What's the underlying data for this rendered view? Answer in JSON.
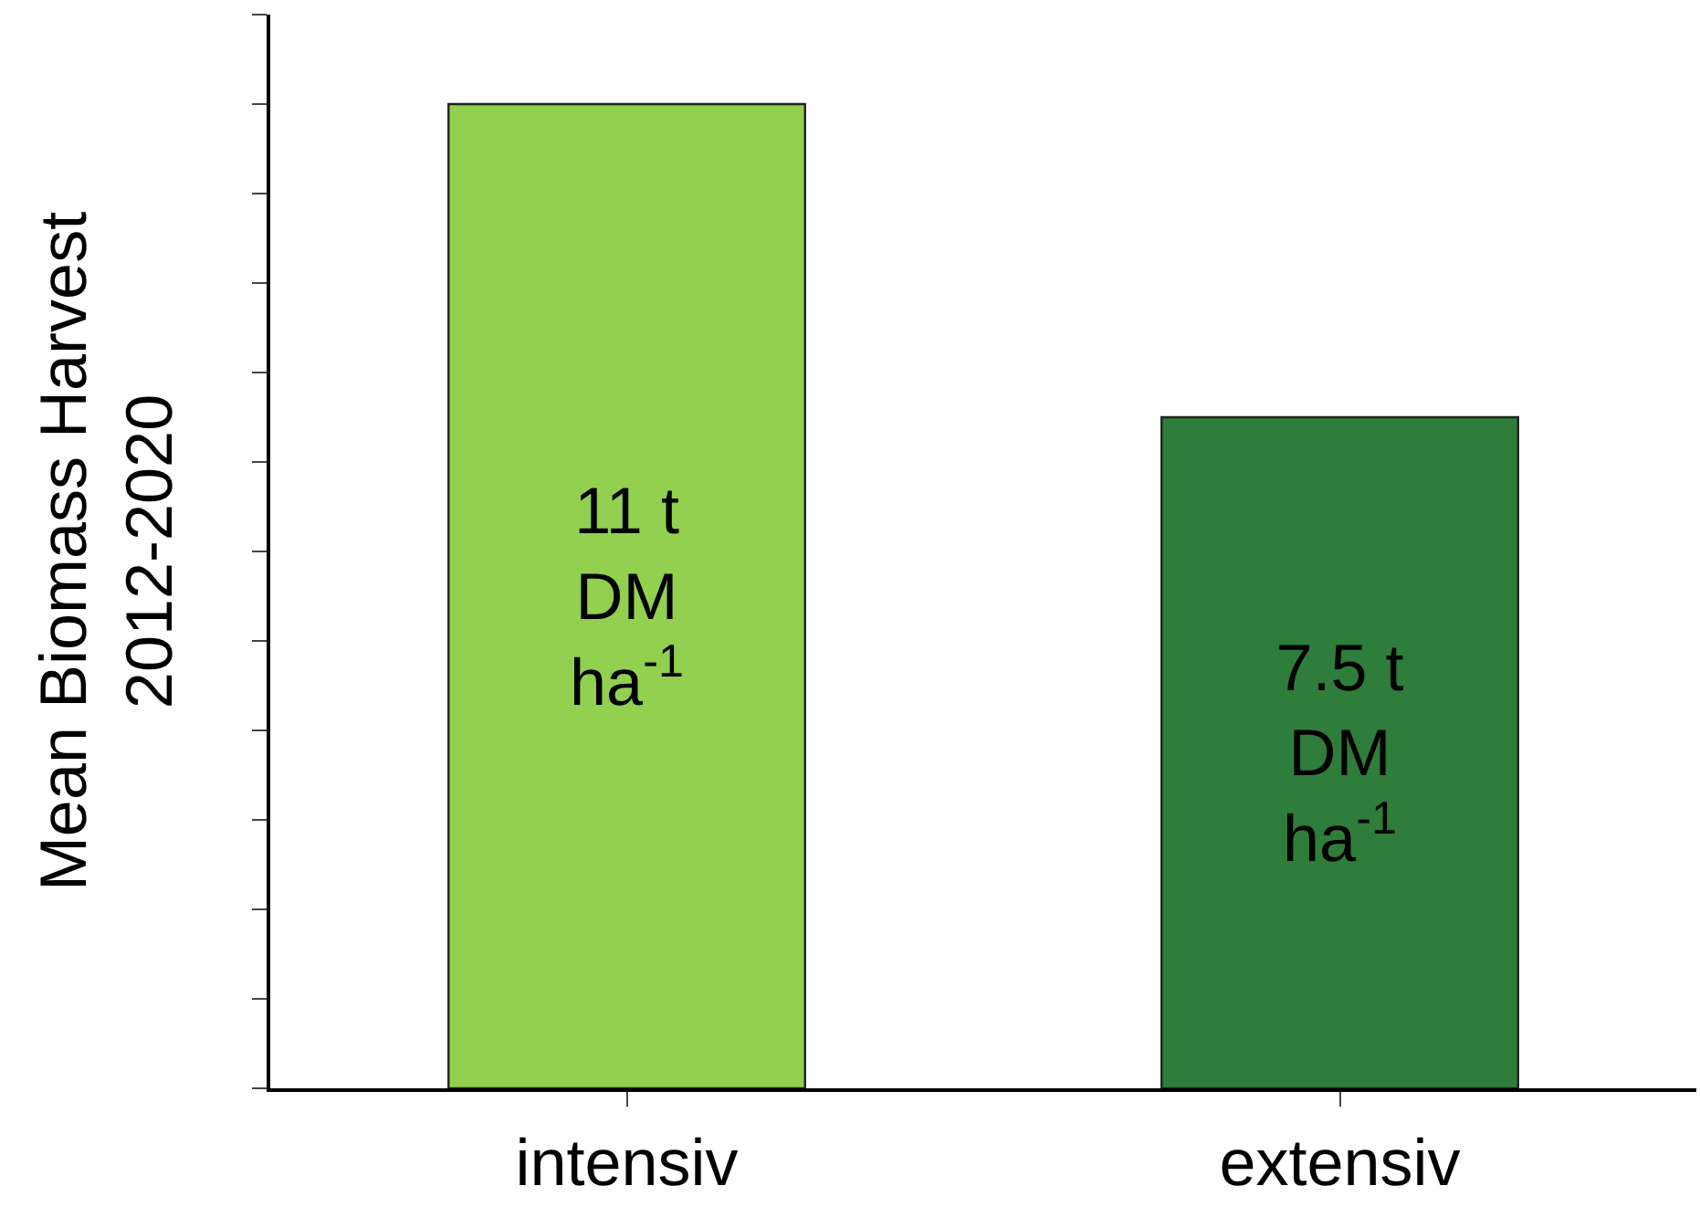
{
  "chart_data": {
    "type": "bar",
    "ylabel": "Mean Biomass Harvest\n2012-2020",
    "categories": [
      "intensiv",
      "extensiv"
    ],
    "values": [
      11,
      7.5
    ],
    "colors": [
      "#92d050",
      "#2e7d3a"
    ],
    "value_labels": [
      "11 t\nDM\nha$^{-1}$",
      "7.5 t\nDM\nha$^{-1}$"
    ],
    "ylim": [
      0,
      12
    ],
    "yticks": [
      {
        "value": 0,
        "label": null
      },
      {
        "value": 1,
        "label": null
      },
      {
        "value": 2,
        "label": null
      },
      {
        "value": 3,
        "label": null
      },
      {
        "value": 4,
        "label": null
      },
      {
        "value": 5,
        "label": null
      },
      {
        "value": 6,
        "label": null
      },
      {
        "value": 7,
        "label": null
      },
      {
        "value": 8,
        "label": null
      },
      {
        "value": 9,
        "label": null
      },
      {
        "value": 10,
        "label": null
      },
      {
        "value": 11,
        "label": null
      },
      {
        "value": 12,
        "label": null
      }
    ],
    "grid": false
  }
}
